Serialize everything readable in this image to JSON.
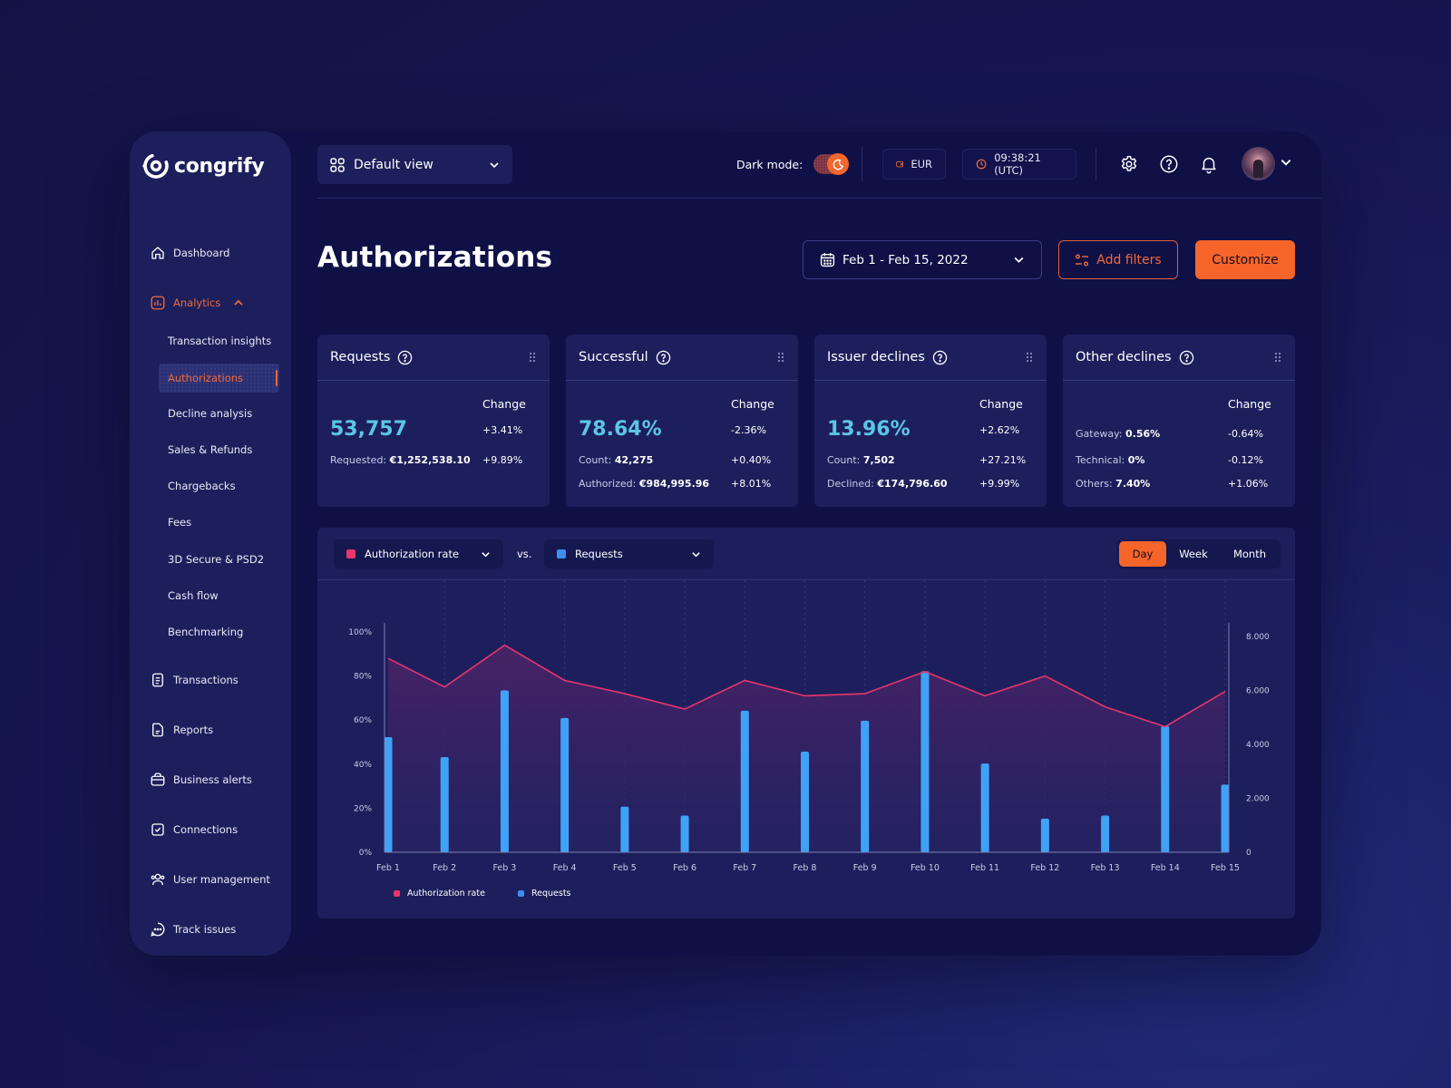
{
  "brand": {
    "name": "congrify"
  },
  "colors": {
    "accent": "#f5652a",
    "accent_text": "#f06a3a",
    "kpi": "#5bc6e6",
    "line": "#e8356d",
    "bar": "#3fa2f7",
    "panel": "#1d1f5c",
    "bg": "#0f1046"
  },
  "topbar": {
    "view": "Default view",
    "dark_mode_label": "Dark mode:",
    "dark_mode_on": true,
    "currency": "EUR",
    "time": "09:38:21 (UTC)",
    "icons": [
      "settings-icon",
      "help-icon",
      "bell-icon"
    ]
  },
  "sidebar": {
    "items": [
      {
        "label": "Dashboard",
        "icon": "home-icon"
      },
      {
        "label": "Analytics",
        "icon": "analytics-icon",
        "active": true,
        "expanded": true,
        "children": [
          {
            "label": "Transaction insights"
          },
          {
            "label": "Authorizations",
            "active": true
          },
          {
            "label": "Decline analysis"
          },
          {
            "label": "Sales & Refunds"
          },
          {
            "label": "Chargebacks"
          },
          {
            "label": "Fees"
          },
          {
            "label": "3D Secure & PSD2"
          },
          {
            "label": "Cash flow"
          },
          {
            "label": "Benchmarking"
          }
        ]
      },
      {
        "label": "Transactions",
        "icon": "document-icon"
      },
      {
        "label": "Reports",
        "icon": "report-icon"
      },
      {
        "label": "Business alerts",
        "icon": "briefcase-icon"
      },
      {
        "label": "Connections",
        "icon": "check-square-icon"
      },
      {
        "label": "User management",
        "icon": "users-icon"
      },
      {
        "label": "Track issues",
        "icon": "chat-icon"
      }
    ]
  },
  "page": {
    "title": "Authorizations",
    "date_range": "Feb 1 - Feb 15, 2022",
    "add_filters": "Add filters",
    "customize": "Customize"
  },
  "cards": [
    {
      "title": "Requests",
      "change_label": "Change",
      "value": "53,757",
      "value_change": "+3.41%",
      "rows": [
        {
          "label": "Requested:",
          "value": "€1,252,538.10",
          "change": "+9.89%"
        }
      ]
    },
    {
      "title": "Successful",
      "change_label": "Change",
      "value": "78.64%",
      "value_change": "-2.36%",
      "rows": [
        {
          "label": "Count:",
          "value": "42,275",
          "change": "+0.40%"
        },
        {
          "label": "Authorized:",
          "value": "€984,995.96",
          "change": "+8.01%"
        }
      ]
    },
    {
      "title": "Issuer declines",
      "change_label": "Change",
      "value": "13.96%",
      "value_change": "+2.62%",
      "rows": [
        {
          "label": "Count:",
          "value": "7,502",
          "change": "+27.21%"
        },
        {
          "label": "Declined:",
          "value": "€174,796.60",
          "change": "+9.99%"
        }
      ]
    },
    {
      "title": "Other declines",
      "change_label": "Change",
      "rows": [
        {
          "label": "Gateway:",
          "value": "0.56%",
          "change": "-0.64%"
        },
        {
          "label": "Technical:",
          "value": "0%",
          "change": "-0.12%"
        },
        {
          "label": "Others:",
          "value": "7.40%",
          "change": "+1.06%"
        }
      ]
    }
  ],
  "chart_controls": {
    "metric_a": "Authorization rate",
    "vs": "vs.",
    "metric_b": "Requests",
    "granularity": [
      "Day",
      "Week",
      "Month"
    ],
    "granularity_selected": "Day"
  },
  "chart_data": {
    "type": "bar+area",
    "categories": [
      "Feb 1",
      "Feb 2",
      "Feb 3",
      "Feb 4",
      "Feb 5",
      "Feb 6",
      "Feb 7",
      "Feb 8",
      "Feb 9",
      "Feb 10",
      "Feb 11",
      "Feb 12",
      "Feb 13",
      "Feb 14",
      "Feb 15"
    ],
    "series": [
      {
        "name": "Authorization rate",
        "type": "area",
        "axis": "left",
        "unit": "%",
        "color": "#e8356d",
        "values": [
          88,
          75,
          94,
          78,
          72,
          65,
          78,
          71,
          72,
          82,
          71,
          80,
          66,
          57,
          73
        ]
      },
      {
        "name": "Requests",
        "type": "bar",
        "axis": "right",
        "color": "#3fa2f7",
        "values": [
          4270,
          3530,
          6000,
          4980,
          1690,
          1360,
          5250,
          3730,
          4880,
          6710,
          3290,
          1250,
          1360,
          4680,
          2510
        ]
      }
    ],
    "y_left": {
      "ticks": [
        "0%",
        "20%",
        "40%",
        "60%",
        "80%",
        "100%"
      ],
      "range": [
        0,
        100
      ]
    },
    "y_right": {
      "ticks": [
        "0",
        "2.000",
        "4.000",
        "6.000",
        "8.000"
      ],
      "range": [
        0,
        8000
      ]
    },
    "grid": "vertical dashed",
    "legend": [
      "Authorization rate",
      "Requests"
    ],
    "legend_position": "bottom-left"
  }
}
